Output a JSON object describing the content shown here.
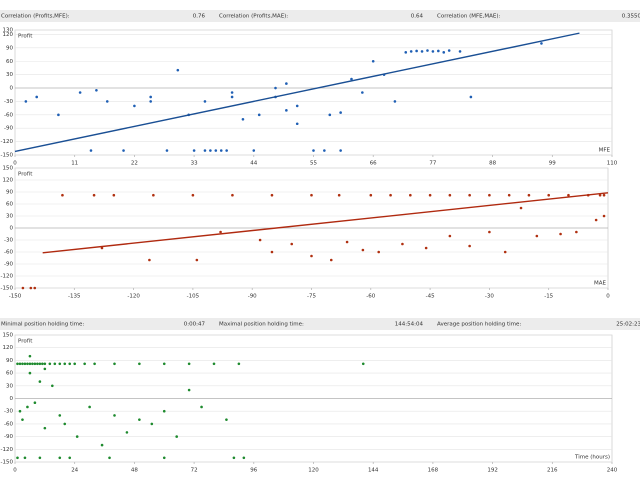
{
  "header_top": [
    {
      "label": "Correlation (Profits,MFE):",
      "value": "0.76"
    },
    {
      "label": "Correlation (Profits,MAE):",
      "value": "0.64"
    },
    {
      "label": "Correlation (MFE,MAE):",
      "value": "0.3550"
    }
  ],
  "header_bottom": [
    {
      "label": "Minimal position holding time:",
      "value": "0:00:47"
    },
    {
      "label": "Maximal position holding time:",
      "value": "144:54:04"
    },
    {
      "label": "Average position holding time:",
      "value": "25:02:23"
    }
  ],
  "chart_data": [
    {
      "type": "scatter",
      "y_label": "Profit",
      "x_label": "MFE",
      "color": "#1f5fb4",
      "trend_color": "#1a4f94",
      "grid": true,
      "xlim": [
        0,
        110
      ],
      "xticks": [
        0,
        11,
        22,
        33,
        44,
        55,
        66,
        77,
        88,
        99,
        110
      ],
      "ylim": [
        -150,
        130
      ],
      "yticks": [
        -150,
        -120,
        -90,
        -60,
        -30,
        0,
        30,
        60,
        90,
        120,
        130
      ],
      "x": [
        2,
        4,
        8,
        12,
        14,
        15,
        17,
        20,
        22,
        25,
        28,
        30,
        33,
        35,
        36,
        38,
        40,
        42,
        45,
        48,
        50,
        52,
        55,
        58,
        60,
        62,
        64,
        66,
        68,
        70,
        72,
        73,
        74,
        75,
        76,
        77,
        78,
        79,
        80,
        82,
        84,
        97,
        25,
        32,
        35,
        37,
        39,
        40,
        44,
        48,
        50,
        52,
        57,
        60
      ],
      "values": [
        -30,
        -20,
        -60,
        -10,
        -140,
        -5,
        -30,
        -140,
        -40,
        -20,
        -140,
        40,
        -140,
        -30,
        -140,
        -140,
        -20,
        -70,
        -60,
        0,
        -50,
        -40,
        -140,
        -60,
        -55,
        20,
        -10,
        60,
        30,
        -30,
        80,
        82,
        83,
        82,
        84,
        82,
        83,
        80,
        84,
        82,
        -20,
        100,
        -30,
        -60,
        -140,
        -140,
        -140,
        -10,
        -140,
        -20,
        10,
        -80,
        -140,
        -140
      ],
      "trend": {
        "x": [
          0,
          104
        ],
        "y": [
          -142,
          123
        ]
      }
    },
    {
      "type": "scatter",
      "y_label": "Profit",
      "x_label": "MAE",
      "color": "#b03010",
      "trend_color": "#b02a10",
      "grid": true,
      "xlim": [
        -150,
        0
      ],
      "xticks": [
        -150,
        -135,
        -120,
        -105,
        -90,
        -75,
        -60,
        -45,
        -30,
        -15,
        0
      ],
      "ylim": [
        -150,
        150
      ],
      "yticks": [
        -150,
        -120,
        -90,
        -60,
        -30,
        0,
        30,
        60,
        90,
        120,
        150
      ],
      "x": [
        -148,
        -146,
        -145,
        -138,
        -130,
        -125,
        -115,
        -105,
        -95,
        -85,
        -75,
        -68,
        -60,
        -55,
        -50,
        -45,
        -40,
        -35,
        -30,
        -25,
        -20,
        -15,
        -10,
        -5,
        -2,
        -1,
        -128,
        -116,
        -98,
        -85,
        -80,
        -75,
        -70,
        -66,
        -62,
        -58,
        -52,
        -46,
        -40,
        -35,
        -30,
        -26,
        -22,
        -18,
        -12,
        -8,
        -3,
        -1,
        -88,
        -104
      ],
      "values": [
        -150,
        -150,
        -150,
        82,
        82,
        82,
        82,
        82,
        82,
        82,
        82,
        82,
        82,
        82,
        82,
        82,
        82,
        82,
        82,
        82,
        82,
        82,
        82,
        82,
        82,
        82,
        -50,
        -80,
        -10,
        -60,
        -40,
        -70,
        -80,
        -35,
        -55,
        -60,
        -40,
        -50,
        -20,
        -45,
        -10,
        -60,
        50,
        -20,
        -15,
        -10,
        20,
        30,
        -30,
        -80
      ],
      "trend": {
        "x": [
          -143,
          0
        ],
        "y": [
          -62,
          88
        ]
      }
    },
    {
      "type": "scatter",
      "y_label": "Profit",
      "x_label": "Time (hours)",
      "color": "#1e8a2e",
      "grid": true,
      "xlim": [
        0,
        240
      ],
      "xticks": [
        0,
        24,
        48,
        72,
        96,
        120,
        144,
        168,
        192,
        216,
        240
      ],
      "ylim": [
        -150,
        150
      ],
      "yticks": [
        -150,
        -120,
        -90,
        -60,
        -30,
        0,
        30,
        60,
        90,
        120,
        150
      ],
      "x": [
        1,
        2,
        3,
        4,
        5,
        6,
        7,
        8,
        9,
        10,
        11,
        12,
        14,
        16,
        18,
        20,
        22,
        24,
        28,
        32,
        40,
        50,
        60,
        70,
        80,
        90,
        140,
        2,
        3,
        5,
        6,
        8,
        10,
        12,
        15,
        18,
        20,
        25,
        30,
        35,
        40,
        45,
        50,
        55,
        60,
        65,
        70,
        75,
        85,
        1,
        4,
        10,
        18,
        22,
        38,
        60,
        88,
        92,
        6,
        12
      ],
      "values": [
        82,
        82,
        82,
        82,
        82,
        82,
        82,
        82,
        82,
        82,
        82,
        82,
        82,
        82,
        82,
        82,
        82,
        82,
        82,
        82,
        82,
        82,
        82,
        82,
        82,
        82,
        82,
        -30,
        -50,
        -20,
        60,
        -10,
        40,
        -70,
        30,
        -40,
        -60,
        -90,
        -20,
        -110,
        -40,
        -80,
        -50,
        -60,
        -30,
        -90,
        20,
        -20,
        -50,
        -140,
        -140,
        -140,
        -140,
        -140,
        -140,
        -140,
        -140,
        -140,
        100,
        70
      ]
    }
  ]
}
